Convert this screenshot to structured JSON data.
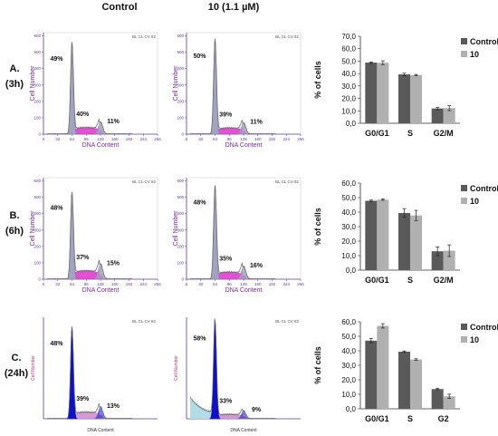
{
  "column_headers": [
    "Control",
    "10 (1.1 µM)"
  ],
  "rows": [
    {
      "label_a": "A.",
      "label_b": "(3h)"
    },
    {
      "label_a": "B.",
      "label_b": "(6h)"
    },
    {
      "label_a": "C.",
      "label_b": "(24h)"
    }
  ],
  "chart_data": [
    {
      "type": "area",
      "panel": "A control",
      "xlabel": "DNA Content",
      "ylabel": "Cell Number",
      "xticks": [
        "0",
        "32",
        "64",
        "96",
        "128",
        "160",
        "192",
        "224",
        "256"
      ],
      "yticks": [
        "0",
        "100",
        "200",
        "300",
        "400",
        "500",
        "600"
      ],
      "header_text": "BL CL CV 82",
      "annotations": [
        "49%",
        "40%",
        "11%"
      ],
      "g1_peak": 64,
      "g2_peak": 128,
      "peak_counts": [
        560,
        75
      ]
    },
    {
      "type": "area",
      "panel": "A treated",
      "xlabel": "DNA Content",
      "ylabel": "Cell Number",
      "xticks": [
        "0",
        "32",
        "64",
        "96",
        "128",
        "160",
        "192",
        "224",
        "256"
      ],
      "yticks": [
        "0",
        "100",
        "200",
        "300",
        "400",
        "500",
        "600"
      ],
      "header_text": "BL CL CV 82",
      "annotations": [
        "50%",
        "39%",
        "11%"
      ],
      "g1_peak": 64,
      "g2_peak": 128,
      "peak_counts": [
        580,
        70
      ]
    },
    {
      "type": "bar",
      "panel": "A bars",
      "categories": [
        "G0/G1",
        "S",
        "G2/M"
      ],
      "series": [
        {
          "name": "Control",
          "values": [
            48.8,
            39.3,
            11.9
          ],
          "errors": [
            0.5,
            1.0,
            1.0
          ]
        },
        {
          "name": "10",
          "values": [
            48.7,
            38.8,
            12.2
          ],
          "errors": [
            1.5,
            0.5,
            2.0
          ]
        }
      ],
      "ylabel": "% of cells",
      "ylim": [
        0,
        70
      ],
      "yticks": [
        "0,0",
        "10,0",
        "20,0",
        "30,0",
        "40,0",
        "50,0",
        "60,0",
        "70,0"
      ]
    },
    {
      "type": "area",
      "panel": "B control",
      "xlabel": "DNA Content",
      "ylabel": "Cell Number",
      "xticks": [
        "0",
        "32",
        "64",
        "96",
        "128",
        "160",
        "192",
        "224",
        "256"
      ],
      "yticks": [
        "0",
        "100",
        "200",
        "300",
        "400",
        "500",
        "600"
      ],
      "header_text": "BL CL CV 82",
      "annotations": [
        "48%",
        "37%",
        "15%"
      ],
      "g1_peak": 64,
      "g2_peak": 128,
      "peak_counts": [
        530,
        95
      ]
    },
    {
      "type": "area",
      "panel": "B treated",
      "xlabel": "DNA Content",
      "ylabel": "Cell Number",
      "xticks": [
        "0",
        "32",
        "64",
        "96",
        "128",
        "160",
        "192",
        "224",
        "256"
      ],
      "yticks": [
        "0",
        "100",
        "200",
        "300",
        "400",
        "500",
        "600"
      ],
      "header_text": "BL CL CV 82",
      "annotations": [
        "48%",
        "35%",
        "16%"
      ],
      "g1_peak": 64,
      "g2_peak": 128,
      "peak_counts": [
        570,
        80
      ]
    },
    {
      "type": "bar",
      "panel": "B bars",
      "categories": [
        "G0/G1",
        "S",
        "G2/M"
      ],
      "series": [
        {
          "name": "Control",
          "values": [
            47.8,
            39.4,
            13.0
          ],
          "errors": [
            0.5,
            3.0,
            3.0
          ]
        },
        {
          "name": "10",
          "values": [
            48.6,
            37.7,
            13.4
          ],
          "errors": [
            0.5,
            3.5,
            4.0
          ]
        }
      ],
      "ylabel": "% of cells",
      "ylim": [
        0,
        60
      ],
      "yticks": [
        "0,0",
        "10,0",
        "20,0",
        "30,0",
        "40,0",
        "50,0",
        "60,0"
      ]
    },
    {
      "type": "area",
      "panel": "C control",
      "xlabel": "DNA Content",
      "ylabel": "Cell Number",
      "xticks": [],
      "yticks": [],
      "header_text": "BL CL CV 82",
      "annotations": [
        "48%",
        "39%",
        "13%"
      ],
      "g1_peak": 64,
      "g2_peak": 128,
      "peak_counts": [
        560,
        75
      ]
    },
    {
      "type": "area",
      "panel": "C treated",
      "xlabel": "DNA Content",
      "ylabel": "Cell Number",
      "xticks": [],
      "yticks": [],
      "header_text": "BL CL CV 82",
      "annotations": [
        "58%",
        "33%",
        "9%"
      ],
      "g1_peak": 64,
      "g2_peak": 128,
      "peak_counts": [
        600,
        50
      ]
    },
    {
      "type": "bar",
      "panel": "C bars",
      "categories": [
        "G0/G1",
        "S",
        "G2"
      ],
      "series": [
        {
          "name": "Control",
          "values": [
            47.0,
            39.4,
            13.6
          ],
          "errors": [
            1.5,
            0.5,
            0.5
          ]
        },
        {
          "name": "10",
          "values": [
            57.2,
            34.0,
            8.6
          ],
          "errors": [
            1.5,
            0.5,
            1.5
          ]
        }
      ],
      "ylabel": "% of cells",
      "ylim": [
        0,
        60
      ],
      "yticks": [
        "0,0",
        "10,0",
        "20,0",
        "30,0",
        "40,0",
        "50,0",
        "60,0"
      ]
    }
  ],
  "colors": {
    "g1_fill": "#a3a2c0",
    "s_fill": "#dd33cc",
    "line": "#6a6a6a",
    "axis": "#5a3aa0",
    "label": "#7a2aa0",
    "c_g1_fill": "#1010c8",
    "c_s_fill": "#d28fd0",
    "c_sub": "#b2dce6",
    "bar_control": "#5a5a5a",
    "bar_treated": "#b0b0b0"
  }
}
